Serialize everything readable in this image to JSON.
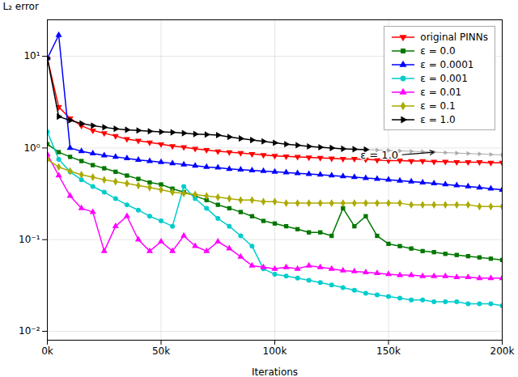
{
  "chart_data": {
    "type": "line",
    "xlabel": "Iterations",
    "ylabel": "L₂ error",
    "log": "y",
    "xlim": [
      0,
      200000
    ],
    "ylim": [
      0.008,
      25
    ],
    "xticks": [
      {
        "value": 0,
        "label": "0k"
      },
      {
        "value": 50000,
        "label": "50k"
      },
      {
        "value": 100000,
        "label": "100k"
      },
      {
        "value": 150000,
        "label": "150k"
      },
      {
        "value": 200000,
        "label": "200k"
      }
    ],
    "yticks": [
      {
        "value": 0.01,
        "label": "10⁻²"
      },
      {
        "value": 0.1,
        "label": "10⁻¹"
      },
      {
        "value": 1,
        "label": "10⁰"
      },
      {
        "value": 10,
        "label": "10¹"
      }
    ],
    "grid": true,
    "legend": "upper right",
    "series": [
      {
        "name": "original PINNs",
        "color": "#ff0000",
        "marker": "triangle_down",
        "x": [
          0,
          5000,
          10000,
          15000,
          20000,
          25000,
          30000,
          35000,
          40000,
          45000,
          50000,
          55000,
          60000,
          65000,
          70000,
          75000,
          80000,
          85000,
          90000,
          95000,
          100000,
          105000,
          110000,
          115000,
          120000,
          125000,
          130000,
          135000,
          140000,
          145000,
          150000,
          155000,
          160000,
          165000,
          170000,
          175000,
          180000,
          185000,
          190000,
          195000,
          200000
        ],
        "values": [
          9.5,
          2.8,
          2.1,
          1.75,
          1.55,
          1.45,
          1.35,
          1.25,
          1.2,
          1.15,
          1.1,
          1.05,
          1.02,
          0.98,
          0.95,
          0.92,
          0.9,
          0.88,
          0.86,
          0.84,
          0.82,
          0.81,
          0.8,
          0.79,
          0.78,
          0.77,
          0.76,
          0.76,
          0.75,
          0.74,
          0.73,
          0.73,
          0.72,
          0.72,
          0.71,
          0.71,
          0.7,
          0.7,
          0.7,
          0.69,
          0.69
        ]
      },
      {
        "name": "ε = 0.0",
        "color": "#007700",
        "marker": "square",
        "x": [
          0,
          5000,
          10000,
          15000,
          20000,
          25000,
          30000,
          35000,
          40000,
          45000,
          50000,
          55000,
          60000,
          65000,
          70000,
          75000,
          80000,
          85000,
          90000,
          95000,
          100000,
          105000,
          110000,
          115000,
          120000,
          125000,
          130000,
          135000,
          140000,
          145000,
          150000,
          155000,
          160000,
          165000,
          170000,
          175000,
          180000,
          185000,
          190000,
          195000,
          200000
        ],
        "values": [
          1.1,
          0.9,
          0.8,
          0.72,
          0.65,
          0.6,
          0.55,
          0.5,
          0.46,
          0.42,
          0.4,
          0.36,
          0.33,
          0.3,
          0.27,
          0.24,
          0.22,
          0.2,
          0.18,
          0.16,
          0.15,
          0.14,
          0.13,
          0.12,
          0.12,
          0.11,
          0.22,
          0.14,
          0.18,
          0.11,
          0.09,
          0.085,
          0.08,
          0.075,
          0.073,
          0.07,
          0.068,
          0.066,
          0.064,
          0.062,
          0.06
        ]
      },
      {
        "name": "ε = 0.0001",
        "color": "#0000ff",
        "marker": "triangle_up",
        "x": [
          0,
          5000,
          10000,
          15000,
          20000,
          25000,
          30000,
          35000,
          40000,
          45000,
          50000,
          55000,
          60000,
          65000,
          70000,
          75000,
          80000,
          85000,
          90000,
          95000,
          100000,
          105000,
          110000,
          115000,
          120000,
          125000,
          130000,
          135000,
          140000,
          145000,
          150000,
          155000,
          160000,
          165000,
          170000,
          175000,
          180000,
          185000,
          190000,
          195000,
          200000
        ],
        "values": [
          9.5,
          17.0,
          1.0,
          0.92,
          0.87,
          0.83,
          0.8,
          0.77,
          0.74,
          0.72,
          0.7,
          0.68,
          0.66,
          0.64,
          0.62,
          0.61,
          0.59,
          0.58,
          0.57,
          0.56,
          0.55,
          0.54,
          0.53,
          0.52,
          0.51,
          0.5,
          0.49,
          0.48,
          0.47,
          0.46,
          0.45,
          0.44,
          0.43,
          0.42,
          0.41,
          0.4,
          0.39,
          0.38,
          0.37,
          0.36,
          0.35
        ]
      },
      {
        "name": "ε = 0.001",
        "color": "#00cccc",
        "marker": "circle",
        "x": [
          0,
          5000,
          10000,
          15000,
          20000,
          25000,
          30000,
          35000,
          40000,
          45000,
          50000,
          55000,
          60000,
          65000,
          70000,
          75000,
          80000,
          85000,
          90000,
          95000,
          100000,
          105000,
          110000,
          115000,
          120000,
          125000,
          130000,
          135000,
          140000,
          145000,
          150000,
          155000,
          160000,
          165000,
          170000,
          175000,
          180000,
          185000,
          190000,
          195000,
          200000
        ],
        "values": [
          1.5,
          0.75,
          0.55,
          0.45,
          0.38,
          0.33,
          0.28,
          0.24,
          0.21,
          0.18,
          0.16,
          0.14,
          0.38,
          0.28,
          0.22,
          0.17,
          0.14,
          0.11,
          0.085,
          0.048,
          0.042,
          0.04,
          0.038,
          0.036,
          0.034,
          0.032,
          0.03,
          0.028,
          0.026,
          0.025,
          0.024,
          0.023,
          0.022,
          0.022,
          0.021,
          0.021,
          0.021,
          0.02,
          0.02,
          0.02,
          0.019
        ]
      },
      {
        "name": "ε = 0.01",
        "color": "#ff00ff",
        "marker": "triangle_up",
        "x": [
          0,
          5000,
          10000,
          15000,
          20000,
          25000,
          30000,
          35000,
          40000,
          45000,
          50000,
          55000,
          60000,
          65000,
          70000,
          75000,
          80000,
          85000,
          90000,
          95000,
          100000,
          105000,
          110000,
          115000,
          120000,
          125000,
          130000,
          135000,
          140000,
          145000,
          150000,
          155000,
          160000,
          165000,
          170000,
          175000,
          180000,
          185000,
          190000,
          195000,
          200000
        ],
        "values": [
          0.85,
          0.5,
          0.3,
          0.22,
          0.2,
          0.075,
          0.14,
          0.18,
          0.1,
          0.075,
          0.095,
          0.075,
          0.11,
          0.085,
          0.075,
          0.095,
          0.08,
          0.065,
          0.052,
          0.05,
          0.048,
          0.05,
          0.048,
          0.052,
          0.05,
          0.048,
          0.046,
          0.045,
          0.044,
          0.043,
          0.042,
          0.041,
          0.041,
          0.04,
          0.04,
          0.04,
          0.039,
          0.039,
          0.038,
          0.038,
          0.038
        ]
      },
      {
        "name": "ε = 0.1",
        "color": "#aaaa00",
        "marker": "diamond",
        "x": [
          0,
          5000,
          10000,
          15000,
          20000,
          25000,
          30000,
          35000,
          40000,
          45000,
          50000,
          55000,
          60000,
          65000,
          70000,
          75000,
          80000,
          85000,
          90000,
          95000,
          100000,
          105000,
          110000,
          115000,
          120000,
          125000,
          130000,
          135000,
          140000,
          145000,
          150000,
          155000,
          160000,
          165000,
          170000,
          175000,
          180000,
          185000,
          190000,
          195000,
          200000
        ],
        "values": [
          0.75,
          0.62,
          0.56,
          0.51,
          0.48,
          0.45,
          0.43,
          0.41,
          0.39,
          0.37,
          0.35,
          0.33,
          0.32,
          0.31,
          0.3,
          0.29,
          0.28,
          0.27,
          0.27,
          0.26,
          0.26,
          0.25,
          0.25,
          0.25,
          0.25,
          0.25,
          0.25,
          0.25,
          0.25,
          0.25,
          0.25,
          0.25,
          0.24,
          0.24,
          0.24,
          0.24,
          0.24,
          0.24,
          0.23,
          0.23,
          0.23
        ]
      },
      {
        "name": "ε = 1.0",
        "color": "#000000",
        "marker": "triangle_right",
        "x": [
          0,
          5000,
          10000,
          15000,
          20000,
          25000,
          30000,
          35000,
          40000,
          45000,
          50000,
          55000,
          60000,
          65000,
          70000,
          75000,
          80000,
          85000,
          90000,
          95000,
          100000,
          105000,
          110000,
          115000,
          120000,
          125000,
          130000,
          135000,
          140000
        ],
        "values": [
          9.5,
          2.2,
          2.0,
          1.85,
          1.75,
          1.68,
          1.62,
          1.58,
          1.55,
          1.52,
          1.5,
          1.48,
          1.45,
          1.42,
          1.4,
          1.38,
          1.32,
          1.27,
          1.22,
          1.18,
          1.14,
          1.1,
          1.07,
          1.04,
          1.02,
          1.0,
          0.98,
          0.97,
          0.96
        ]
      },
      {
        "color": "#ffbbbb",
        "marker": "triangle_down",
        "x": [
          95000,
          100000,
          105000,
          110000,
          115000,
          120000,
          125000,
          130000,
          135000,
          140000,
          145000,
          150000,
          155000,
          160000,
          165000,
          170000,
          175000,
          180000,
          185000,
          190000,
          195000,
          200000
        ],
        "values": [
          0.84,
          0.82,
          0.81,
          0.8,
          0.79,
          0.78,
          0.77,
          0.76,
          0.76,
          0.75,
          0.74,
          0.73,
          0.73,
          0.72,
          0.72,
          0.71,
          0.71,
          0.7,
          0.7,
          0.7,
          0.69,
          0.69
        ]
      },
      {
        "color": "#bbbbff",
        "marker": "triangle_up",
        "x": [
          145000,
          150000,
          155000,
          160000,
          165000,
          170000,
          175000,
          180000,
          185000,
          190000,
          195000,
          200000
        ],
        "values": [
          0.46,
          0.45,
          0.44,
          0.43,
          0.42,
          0.41,
          0.4,
          0.39,
          0.38,
          0.37,
          0.36,
          0.35
        ]
      },
      {
        "color": "#aaaaaa",
        "marker": "triangle_right",
        "x": [
          135000,
          140000,
          145000,
          150000,
          155000,
          160000,
          165000,
          170000,
          175000,
          180000,
          185000,
          190000,
          195000,
          200000
        ],
        "values": [
          0.97,
          0.96,
          0.95,
          0.94,
          0.93,
          0.92,
          0.91,
          0.9,
          0.89,
          0.88,
          0.87,
          0.86,
          0.85,
          0.84
        ]
      }
    ],
    "annotations": [
      {
        "text": "ε = 1.0",
        "x": 170000,
        "y": 0.9,
        "text_x": 155000,
        "text_y": 0.84
      }
    ]
  }
}
